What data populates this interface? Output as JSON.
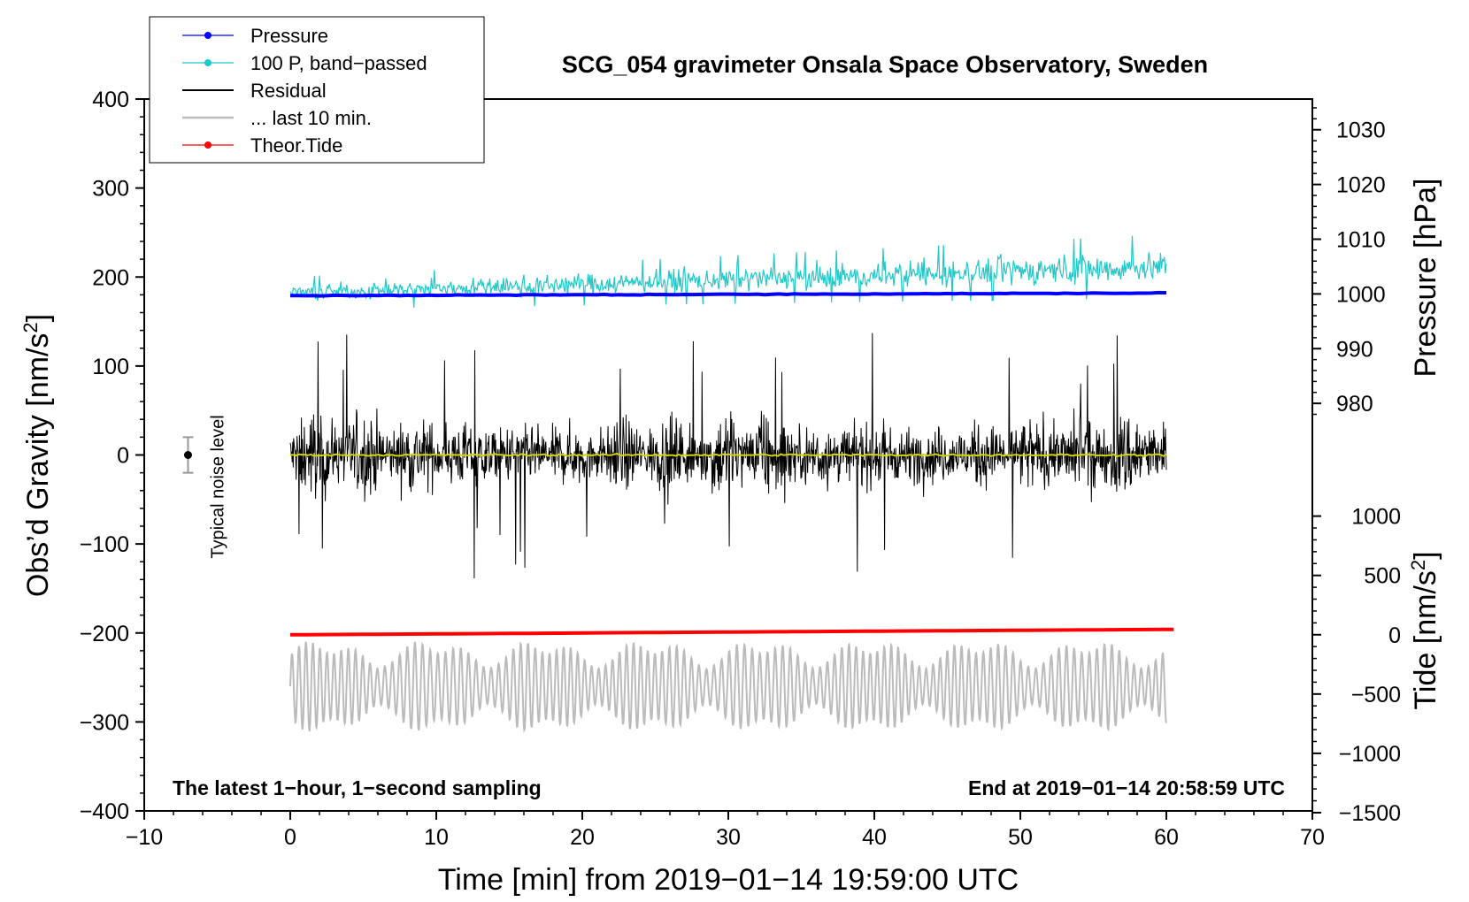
{
  "chart_data": {
    "type": "line",
    "title": "SCG_054 gravimeter Onsala Space Observatory, Sweden",
    "xlabel": "Time [min] from 2019−01−14 19:59:00 UTC",
    "ylabel": "Obs’d Gravity [nm/s²]",
    "y2label_pressure": "Pressure [hPa]",
    "y2label_tide": "Tide [nm/s²]",
    "xlim": [
      -10,
      70
    ],
    "ylim": [
      -400,
      400
    ],
    "x_ticks": [
      -10,
      0,
      10,
      20,
      30,
      40,
      50,
      60,
      70
    ],
    "x_tick_labels": [
      "−10",
      "0",
      "10",
      "20",
      "30",
      "40",
      "50",
      "60",
      "70"
    ],
    "y_ticks": [
      400,
      300,
      200,
      100,
      0,
      -100,
      -200,
      -300,
      -400
    ],
    "y_tick_labels": [
      "400",
      "300",
      "200",
      "100",
      "0",
      "−100",
      "−200",
      "−300",
      "−400"
    ],
    "pressure_axis": {
      "gravity_at_1000": 181,
      "gravity_per_hpa": 6.15,
      "ticks": [
        1030,
        1020,
        1010,
        1000,
        990,
        980
      ],
      "tick_labels": [
        "1030",
        "1020",
        "1010",
        "1000",
        "990",
        "980"
      ]
    },
    "tide_axis": {
      "gravity_at_0": -202,
      "gravity_per_unit": 0.1333,
      "ticks": [
        1000,
        500,
        0,
        -500,
        -1000,
        -1500
      ],
      "tick_labels": [
        "1000",
        "500",
        "0",
        "−500",
        "−1000",
        "−1500"
      ]
    },
    "legend": [
      {
        "label": "Pressure",
        "color": "#0000ff",
        "marker": true
      },
      {
        "label": "100 P, band−passed",
        "color": "#20c8c8",
        "marker": true
      },
      {
        "label": "Residual",
        "color": "#000000",
        "marker": false
      },
      {
        "label": "... last 10 min.",
        "color": "#bbbbbb",
        "marker": false
      },
      {
        "label": "Theor.Tide",
        "color": "#ff0000",
        "marker": true
      }
    ],
    "annotations": {
      "left_note": "The latest 1−hour, 1−second sampling",
      "right_note": "End at 2019−01−14 20:58:59 UTC",
      "noise_label": "Typical noise level"
    },
    "noise_bar": {
      "x": -7,
      "center": 0,
      "half_range": 20
    },
    "series": [
      {
        "name": "Pressure",
        "color": "#0000ff",
        "x_range": [
          0,
          60
        ],
        "y_start_gravity": 179,
        "y_end_gravity": 182
      },
      {
        "name": "100 P, band−passed",
        "color": "#20c8c8",
        "x_range": [
          0,
          60
        ],
        "y_start_gravity": 182,
        "y_end_gravity": 212,
        "amplitude_gravity": 20
      },
      {
        "name": "Residual",
        "color": "#000000",
        "x_range": [
          0,
          60
        ],
        "y_center_gravity": 0,
        "amplitude_gravity": 70,
        "max_gravity": 165,
        "min_gravity": -150
      },
      {
        "name": "Residual mean",
        "color": "#d4d400",
        "x_range": [
          0,
          60
        ],
        "y_gravity": 0
      },
      {
        "name": "Theor.Tide",
        "color": "#ff0000",
        "x_range": [
          0,
          60.5
        ],
        "y_start_gravity": -202,
        "y_end_gravity": -196
      },
      {
        "name": "... last 10 min.",
        "color": "#bbbbbb",
        "x_range": [
          0,
          60
        ],
        "y_center_gravity": -260,
        "amplitude_gravity": 55
      }
    ]
  }
}
